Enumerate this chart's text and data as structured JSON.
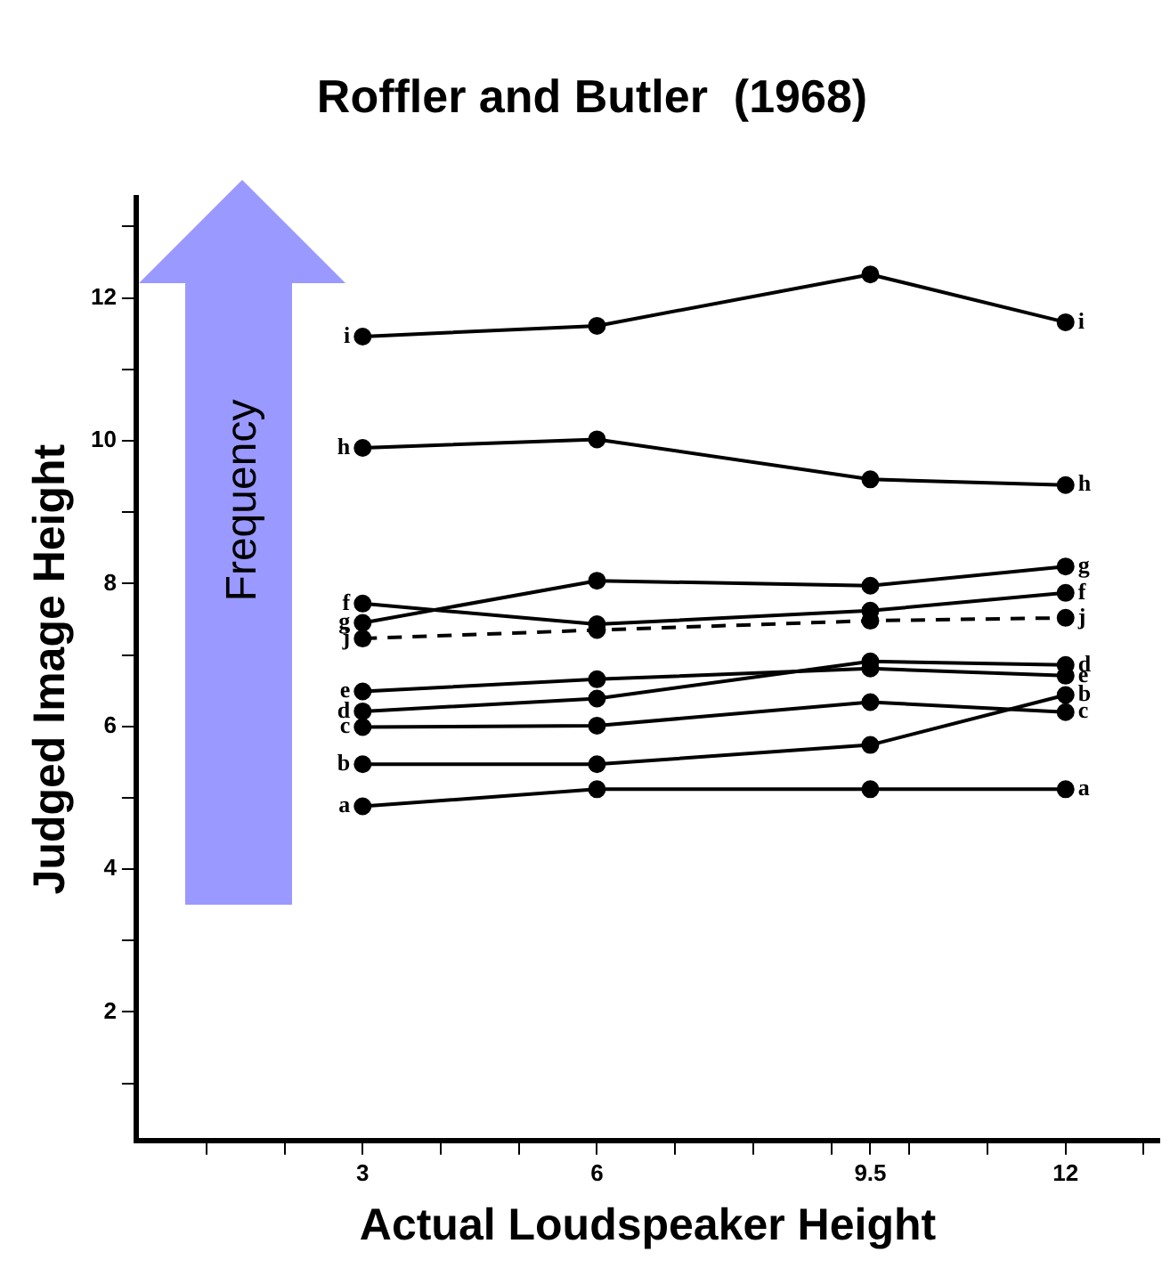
{
  "chart_data": {
    "type": "line",
    "title": "Roffler and Butler  (1968)",
    "xlabel": "Actual Loudspeaker Height",
    "ylabel": "Judged Image Height",
    "x": [
      3,
      6,
      9.5,
      12
    ],
    "series": [
      {
        "name": "a",
        "color": "#000000",
        "values": [
          4.88,
          5.12,
          5.12,
          5.12
        ]
      },
      {
        "name": "b",
        "color": "#000000",
        "values": [
          5.47,
          5.47,
          5.74,
          6.44
        ]
      },
      {
        "name": "c",
        "color": "#000000",
        "values": [
          5.99,
          6.01,
          6.34,
          6.2
        ]
      },
      {
        "name": "d",
        "color": "#000000",
        "values": [
          6.21,
          6.39,
          6.91,
          6.86
        ]
      },
      {
        "name": "e",
        "color": "#000000",
        "values": [
          6.49,
          6.66,
          6.81,
          6.71
        ]
      },
      {
        "name": "f",
        "color": "#000000",
        "values": [
          7.72,
          7.43,
          7.62,
          7.87
        ]
      },
      {
        "name": "g",
        "color": "#000000",
        "values": [
          7.45,
          8.04,
          7.97,
          8.24
        ]
      },
      {
        "name": "j",
        "color": "#000000",
        "line_style": "dashed",
        "values": [
          7.23,
          7.35,
          7.48,
          7.52
        ]
      },
      {
        "name": "h",
        "color": "#000000",
        "values": [
          9.9,
          10.02,
          9.46,
          9.38
        ]
      },
      {
        "name": "i",
        "color": "#000000",
        "values": [
          11.46,
          11.61,
          12.33,
          11.66
        ]
      }
    ],
    "xlim": [
      0.1,
      13.2
    ],
    "xticks": [
      {
        "value": 1,
        "label": null
      },
      {
        "value": 2,
        "label": null
      },
      3,
      {
        "value": 4,
        "label": null
      },
      {
        "value": 5,
        "label": null
      },
      6,
      {
        "value": 7,
        "label": null
      },
      {
        "value": 8,
        "label": null
      },
      {
        "value": 9,
        "label": null
      },
      9.5,
      {
        "value": 10,
        "label": null
      },
      {
        "value": 11,
        "label": null
      },
      12,
      {
        "value": 13,
        "label": null
      }
    ],
    "ylim": [
      0.2,
      13.4
    ],
    "yticks": [
      {
        "value": 1,
        "label": null
      },
      2,
      {
        "value": 3,
        "label": null
      },
      4,
      {
        "value": 5,
        "label": null
      },
      6,
      {
        "value": 7,
        "label": null
      },
      8,
      {
        "value": 9,
        "label": null
      },
      10,
      {
        "value": 11,
        "label": null
      },
      12,
      {
        "value": 13,
        "label": null
      }
    ],
    "annotations": [
      "Frequency"
    ],
    "grid": false,
    "legend": false,
    "marker": "circle",
    "line_style": "solid"
  }
}
